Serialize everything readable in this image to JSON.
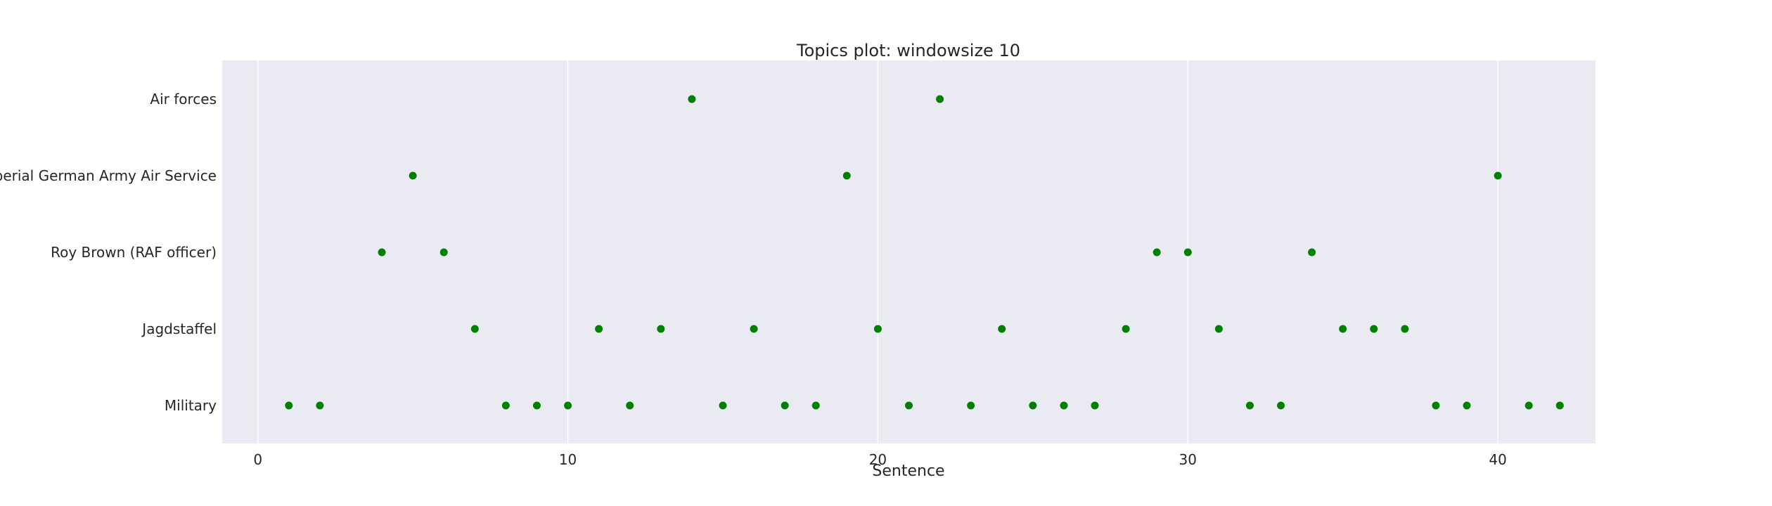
{
  "chart_data": {
    "type": "scatter",
    "title": "Topics plot: windowsize 10",
    "xlabel": "Sentence",
    "ylabel": "",
    "xlim": [
      -1.15,
      43.15
    ],
    "xticks": [
      0,
      10,
      20,
      30,
      40
    ],
    "grid": true,
    "marker_color": "#008000",
    "background_color": "#eaeaf2",
    "categories": [
      "Air forces",
      "Imperial German Army Air Service",
      "Roy Brown (RAF officer)",
      "Jagdstaffel",
      "Military"
    ],
    "points": [
      {
        "x": 1,
        "y": "Military"
      },
      {
        "x": 2,
        "y": "Military"
      },
      {
        "x": 4,
        "y": "Roy Brown (RAF officer)"
      },
      {
        "x": 5,
        "y": "Imperial German Army Air Service"
      },
      {
        "x": 6,
        "y": "Roy Brown (RAF officer)"
      },
      {
        "x": 7,
        "y": "Jagdstaffel"
      },
      {
        "x": 8,
        "y": "Military"
      },
      {
        "x": 9,
        "y": "Military"
      },
      {
        "x": 10,
        "y": "Military"
      },
      {
        "x": 11,
        "y": "Jagdstaffel"
      },
      {
        "x": 12,
        "y": "Military"
      },
      {
        "x": 13,
        "y": "Jagdstaffel"
      },
      {
        "x": 14,
        "y": "Air forces"
      },
      {
        "x": 15,
        "y": "Military"
      },
      {
        "x": 16,
        "y": "Jagdstaffel"
      },
      {
        "x": 17,
        "y": "Military"
      },
      {
        "x": 18,
        "y": "Military"
      },
      {
        "x": 19,
        "y": "Imperial German Army Air Service"
      },
      {
        "x": 20,
        "y": "Jagdstaffel"
      },
      {
        "x": 21,
        "y": "Military"
      },
      {
        "x": 22,
        "y": "Air forces"
      },
      {
        "x": 23,
        "y": "Military"
      },
      {
        "x": 24,
        "y": "Jagdstaffel"
      },
      {
        "x": 25,
        "y": "Military"
      },
      {
        "x": 26,
        "y": "Military"
      },
      {
        "x": 27,
        "y": "Military"
      },
      {
        "x": 28,
        "y": "Jagdstaffel"
      },
      {
        "x": 29,
        "y": "Roy Brown (RAF officer)"
      },
      {
        "x": 30,
        "y": "Roy Brown (RAF officer)"
      },
      {
        "x": 31,
        "y": "Jagdstaffel"
      },
      {
        "x": 32,
        "y": "Military"
      },
      {
        "x": 33,
        "y": "Military"
      },
      {
        "x": 34,
        "y": "Roy Brown (RAF officer)"
      },
      {
        "x": 35,
        "y": "Jagdstaffel"
      },
      {
        "x": 36,
        "y": "Jagdstaffel"
      },
      {
        "x": 37,
        "y": "Jagdstaffel"
      },
      {
        "x": 38,
        "y": "Military"
      },
      {
        "x": 39,
        "y": "Military"
      },
      {
        "x": 40,
        "y": "Imperial German Army Air Service"
      },
      {
        "x": 41,
        "y": "Military"
      },
      {
        "x": 42,
        "y": "Military"
      }
    ]
  }
}
